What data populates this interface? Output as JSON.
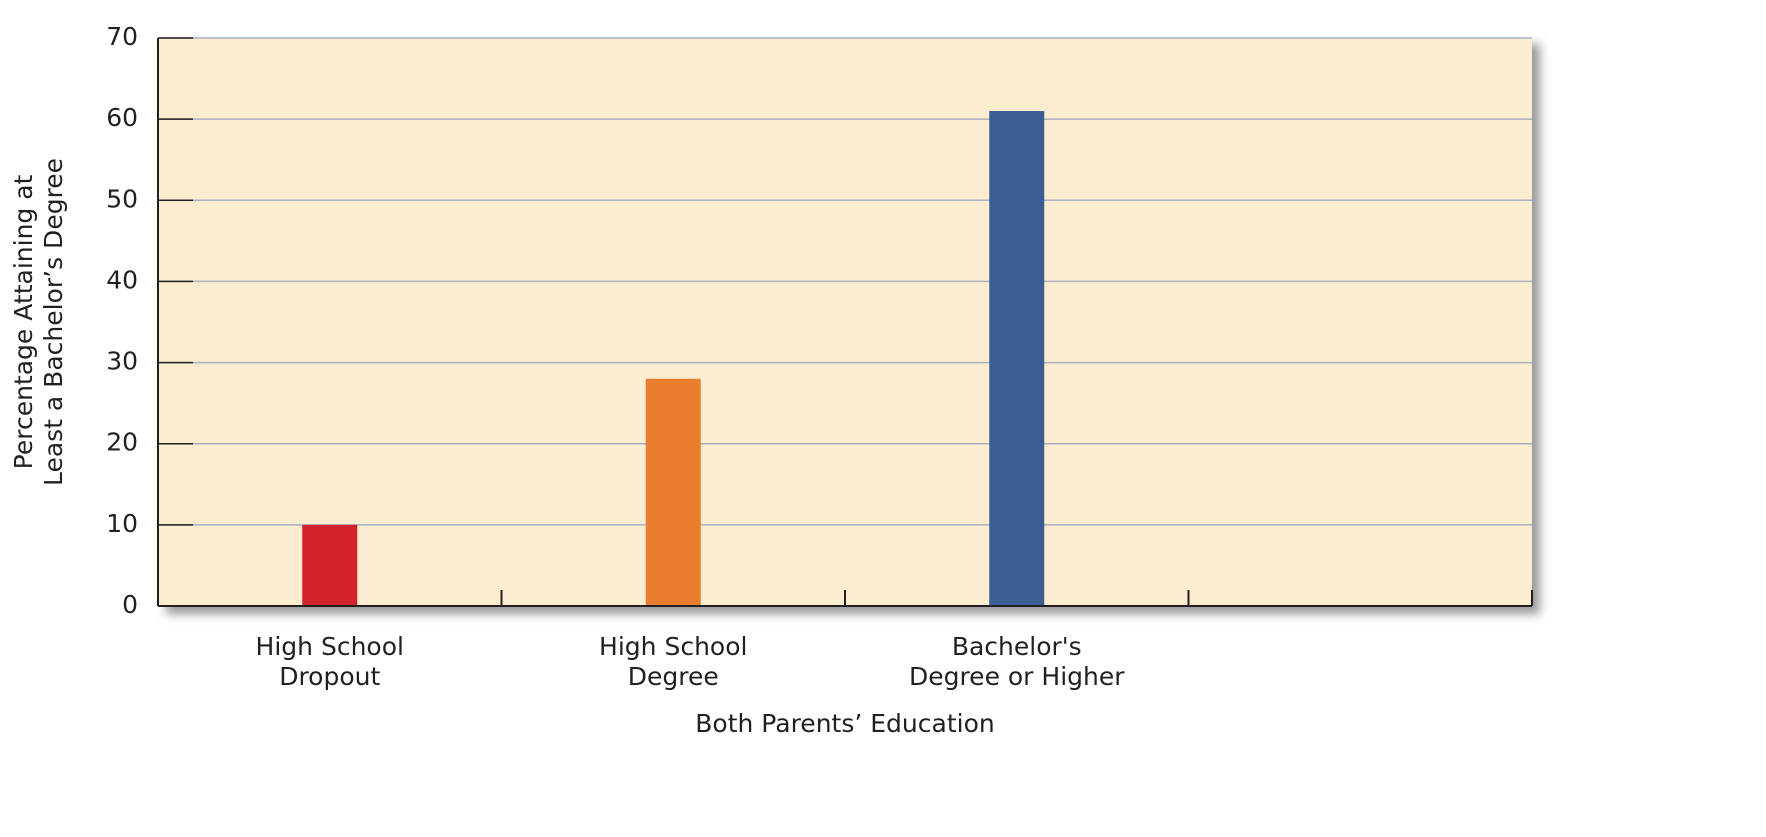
{
  "chart_data": {
    "type": "bar",
    "x_label": "Both Parents’ Education",
    "y_label": "Percentage Attaining at\nLeast a Bachelor’s Degree",
    "categories": [
      "High School\nDropout",
      "High School\nDegree",
      "Bachelor's\nDegree or Higher",
      null
    ],
    "values": [
      10,
      28,
      61,
      null
    ],
    "colors": [
      "#d2232a",
      "#e97e2e",
      "#3a5d96",
      null
    ],
    "ylim": [
      0,
      70
    ],
    "yticks": [
      0,
      10,
      20,
      30,
      40,
      50,
      60,
      70
    ],
    "grid": true,
    "background": "#fdedd0"
  }
}
